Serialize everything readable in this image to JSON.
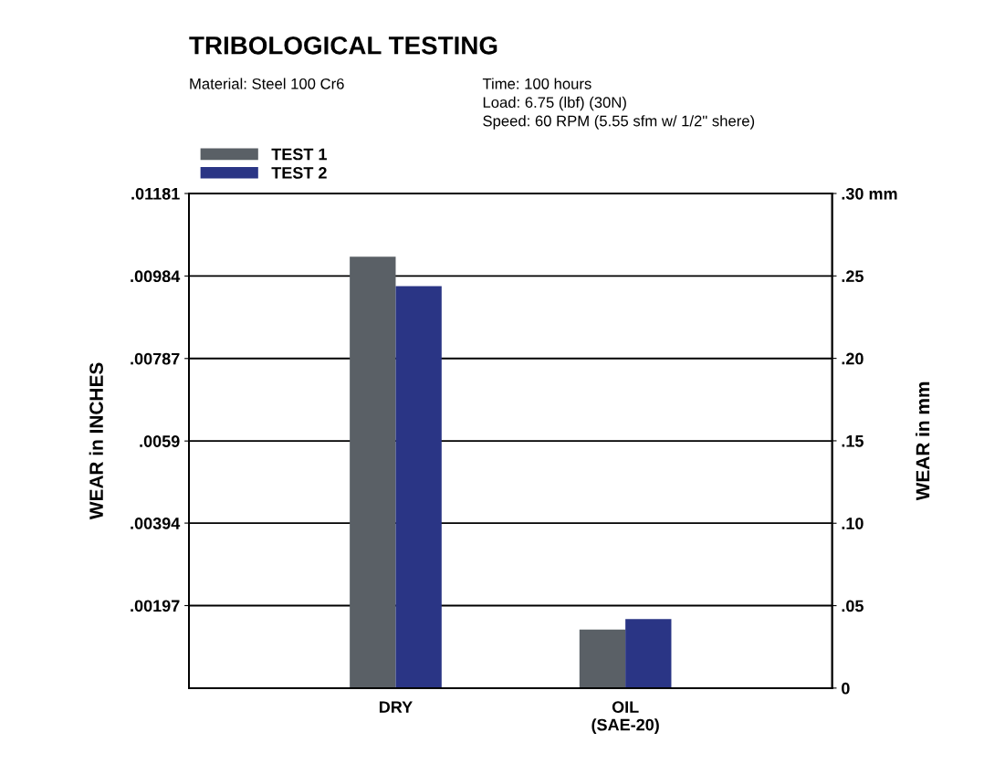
{
  "chart_data": {
    "type": "bar",
    "title": "TRIBOLOGICAL TESTING",
    "annotations": [
      "Material: Steel 100 Cr6",
      "Time: 100 hours",
      "Load: 6.75 (lbf) (30N)",
      "Speed: 60 RPM (5.55 sfm w/ 1/2\" shere)"
    ],
    "ylabel": "WEAR in INCHES",
    "y2label": "WEAR in mm",
    "categories": [
      "DRY",
      "OIL\n(SAE-20)"
    ],
    "series": [
      {
        "name": "TEST 1",
        "color": "#5a6066",
        "values": [
          0.0103,
          0.0014
        ]
      },
      {
        "name": "TEST 2",
        "color": "#2a3585",
        "values": [
          0.0096,
          0.00165
        ]
      }
    ],
    "ylim": [
      0,
      0.01181
    ],
    "yticks": [
      {
        "value": 0.00197,
        "label": ".00197"
      },
      {
        "value": 0.00394,
        "label": ".00394"
      },
      {
        "value": 0.0059,
        "label": ".0059"
      },
      {
        "value": 0.00787,
        "label": ".00787"
      },
      {
        "value": 0.00984,
        "label": ".00984"
      },
      {
        "value": 0.01181,
        "label": ".01181"
      }
    ],
    "y2lim": [
      0,
      0.3
    ],
    "y2ticks": [
      {
        "value": 0,
        "label": "0"
      },
      {
        "value": 0.05,
        "label": ".05"
      },
      {
        "value": 0.1,
        "label": ".10"
      },
      {
        "value": 0.15,
        "label": ".15"
      },
      {
        "value": 0.2,
        "label": ".20"
      },
      {
        "value": 0.25,
        "label": ".25"
      },
      {
        "value": 0.3,
        "label": ".30 mm"
      }
    ],
    "grid": "y",
    "legend": "top left"
  }
}
